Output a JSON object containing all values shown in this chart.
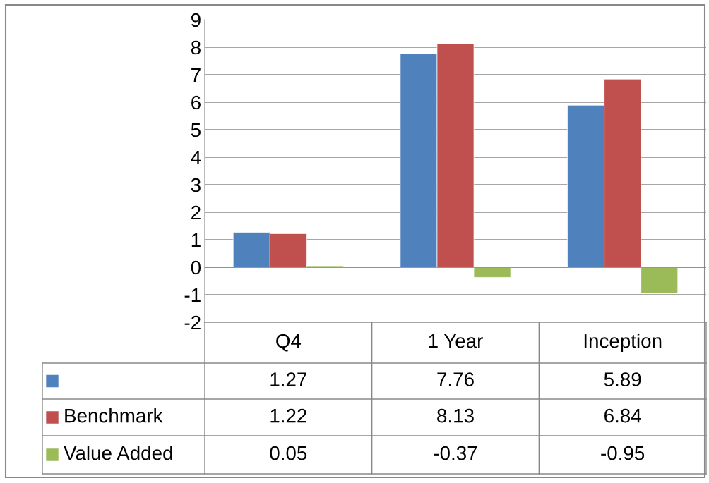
{
  "chart_data": {
    "type": "bar",
    "categories": [
      "Q4",
      "1 Year",
      "Inception"
    ],
    "series": [
      {
        "color": "#4f81bd",
        "values": [
          1.27,
          7.76,
          5.89
        ]
      },
      {
        "name": "Benchmark",
        "color": "#c0504d",
        "values": [
          1.22,
          8.13,
          6.84
        ]
      },
      {
        "name": "Value Added",
        "color": "#9bbb59",
        "values": [
          0.05,
          -0.37,
          -0.95
        ]
      }
    ],
    "ylim": [
      -2,
      9
    ],
    "yticks": [
      -2,
      -1,
      0,
      1,
      2,
      3,
      4,
      5,
      6,
      7,
      8,
      9
    ],
    "grid": "y",
    "legend": "bottom left",
    "data_labels": true,
    "tick_labels": "y"
  }
}
